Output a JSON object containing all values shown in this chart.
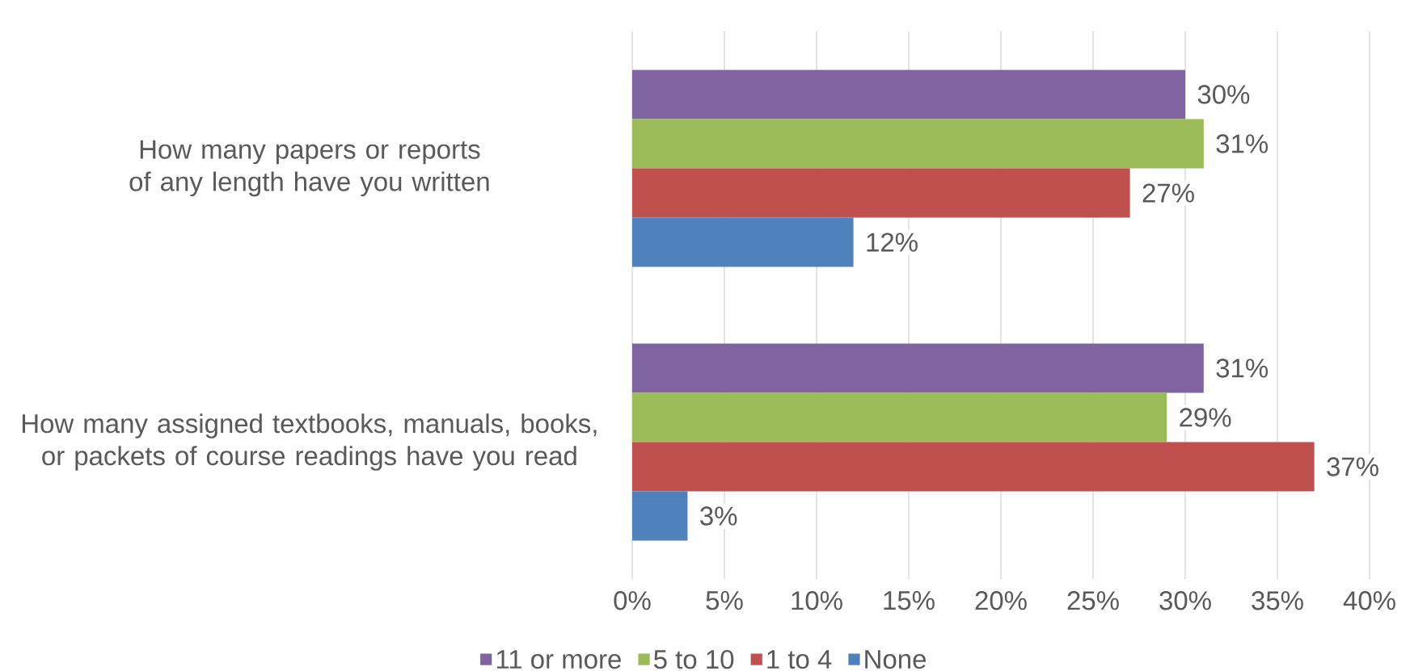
{
  "chart_data": {
    "type": "bar",
    "orientation": "horizontal",
    "categories": [
      "How many papers or reports of any length have you written",
      "How many assigned textbooks, manuals, books, or packets of course readings have you read"
    ],
    "series": [
      {
        "name": "11 or more",
        "color": "#8064a2",
        "values": [
          30,
          31
        ],
        "value_labels": [
          "30%",
          "31%"
        ]
      },
      {
        "name": "5 to 10",
        "color": "#9bbb59",
        "values": [
          31,
          29
        ],
        "value_labels": [
          "31%",
          "29%"
        ]
      },
      {
        "name": "1 to 4",
        "color": "#c0504d",
        "values": [
          27,
          37
        ],
        "value_labels": [
          "27%",
          "37%"
        ]
      },
      {
        "name": "None",
        "color": "#4f81bd",
        "values": [
          12,
          3
        ],
        "value_labels": [
          "12%",
          "3%"
        ]
      }
    ],
    "xlim": [
      0,
      40
    ],
    "xticks": [
      {
        "value": 0,
        "label": "0%"
      },
      {
        "value": 5,
        "label": "5%"
      },
      {
        "value": 10,
        "label": "10%"
      },
      {
        "value": 15,
        "label": "15%"
      },
      {
        "value": 20,
        "label": "20%"
      },
      {
        "value": 25,
        "label": "25%"
      },
      {
        "value": 30,
        "label": "30%"
      },
      {
        "value": 35,
        "label": "35%"
      },
      {
        "value": 40,
        "label": "40%"
      }
    ],
    "grid": "x",
    "legend": "bottom"
  }
}
